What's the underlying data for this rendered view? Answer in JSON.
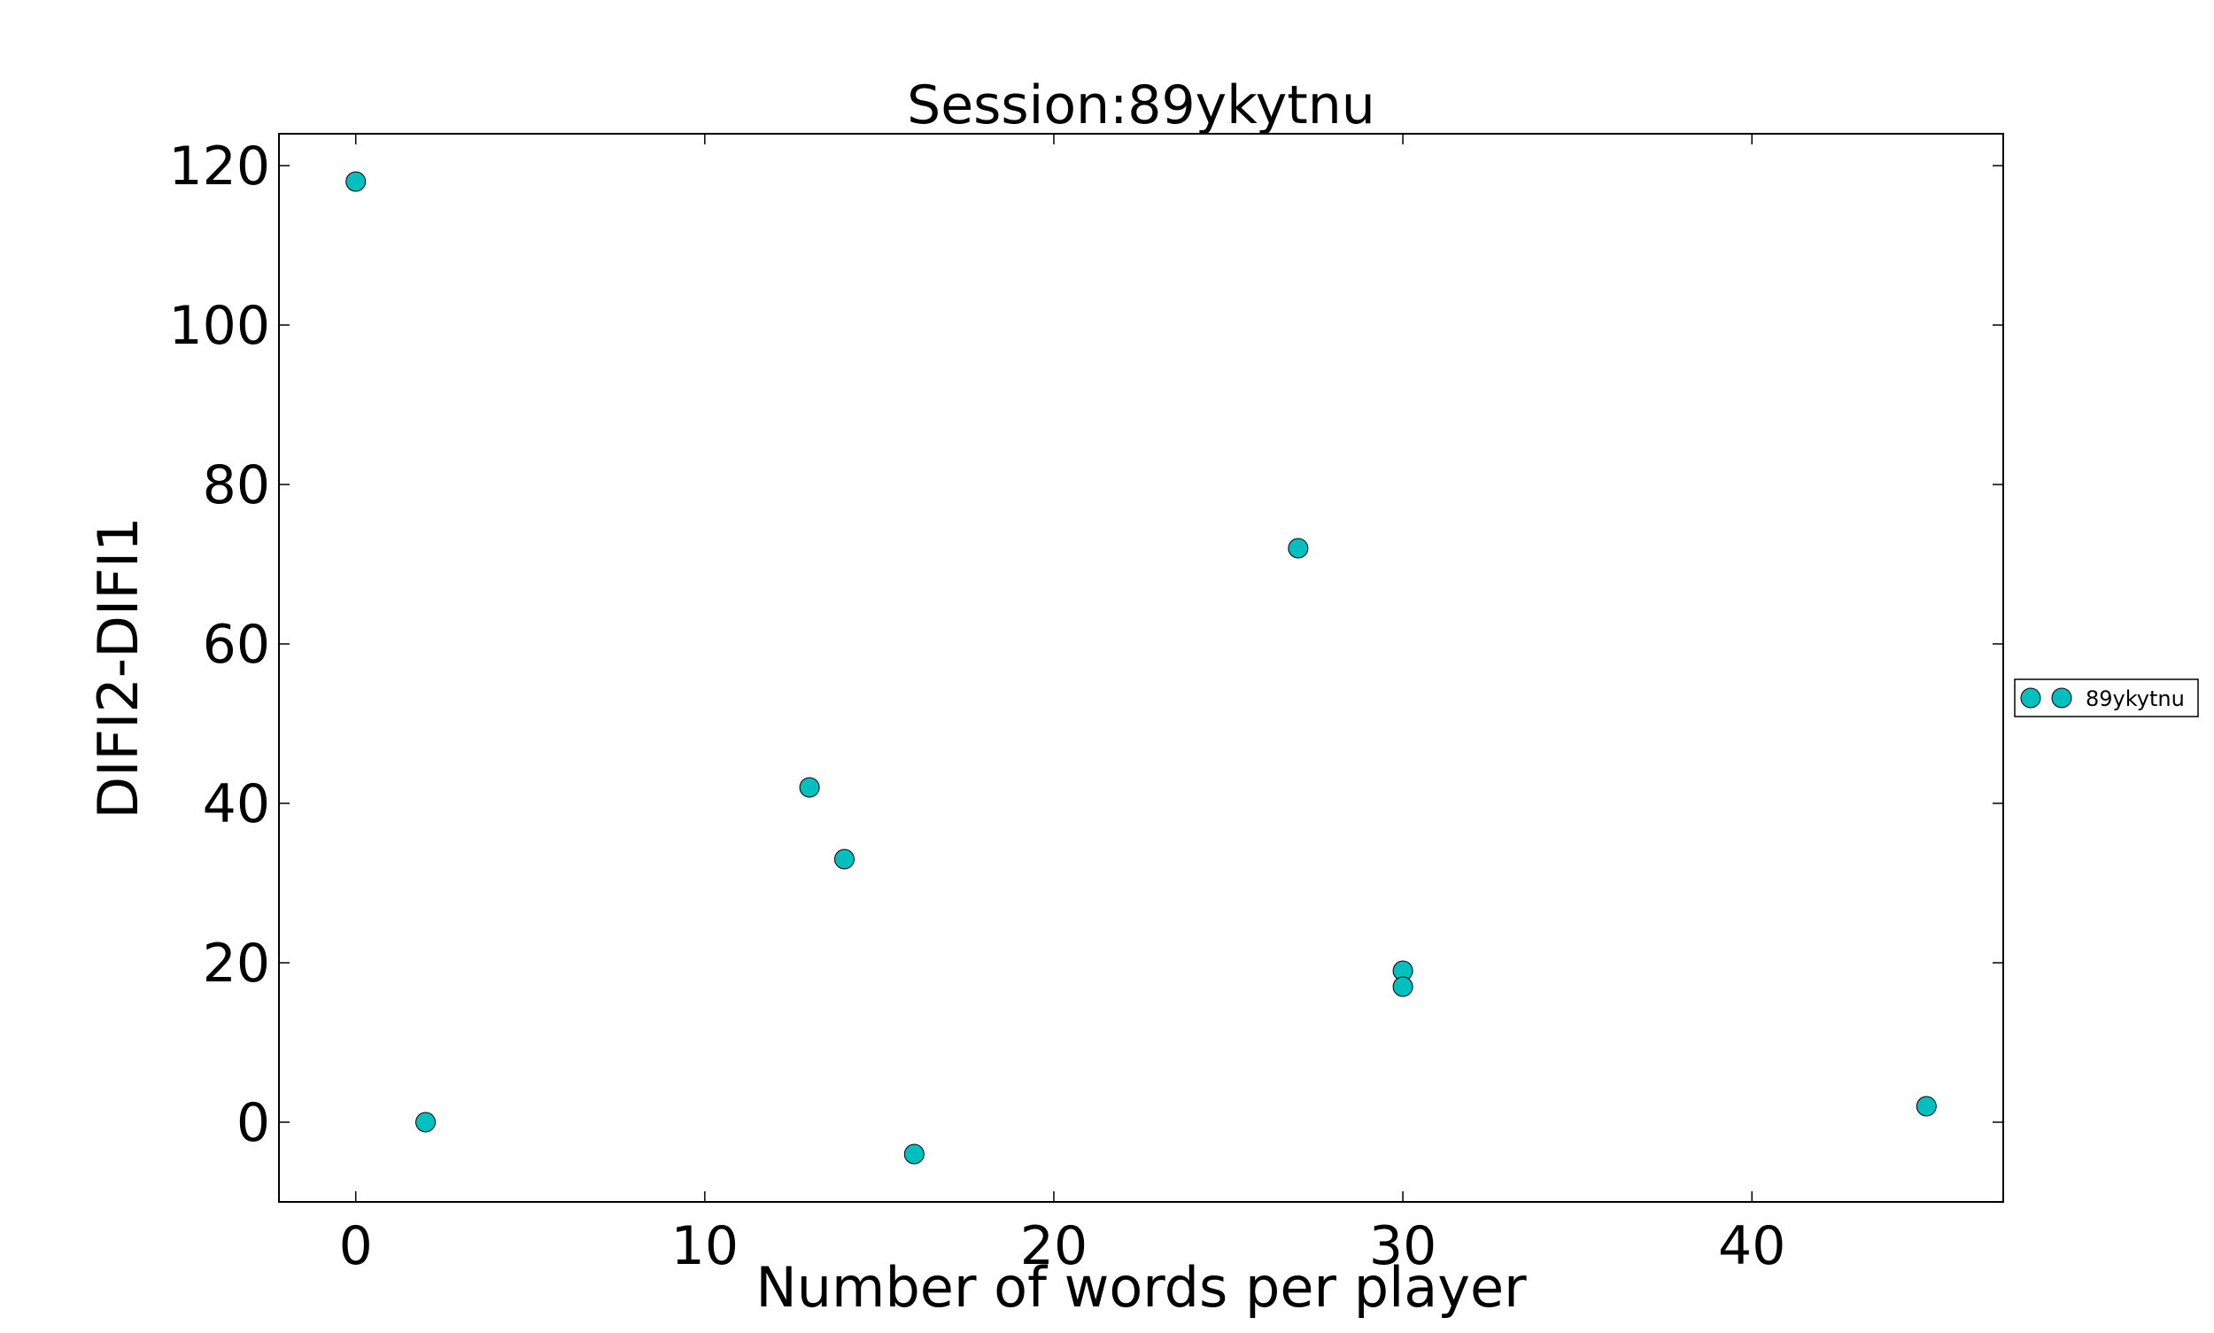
{
  "chart_data": {
    "type": "scatter",
    "title": "Session:89ykytnu",
    "xlabel": "Number of words per player",
    "ylabel": "DIFI2-DIFI1",
    "xlim": [
      -2.2,
      47.2
    ],
    "ylim": [
      -10,
      124
    ],
    "xticks": [
      0,
      10,
      20,
      30,
      40
    ],
    "yticks": [
      0,
      20,
      40,
      60,
      80,
      100,
      120
    ],
    "grid": false,
    "legend_position": "right-outside",
    "series": [
      {
        "name": "89ykytnu",
        "color": "#00bfbf",
        "points": [
          {
            "x": 0,
            "y": 118
          },
          {
            "x": 2,
            "y": 0
          },
          {
            "x": 13,
            "y": 42
          },
          {
            "x": 14,
            "y": 33
          },
          {
            "x": 16,
            "y": -4
          },
          {
            "x": 27,
            "y": 72
          },
          {
            "x": 30,
            "y": 19
          },
          {
            "x": 30,
            "y": 17
          },
          {
            "x": 45,
            "y": 2
          }
        ]
      }
    ]
  }
}
